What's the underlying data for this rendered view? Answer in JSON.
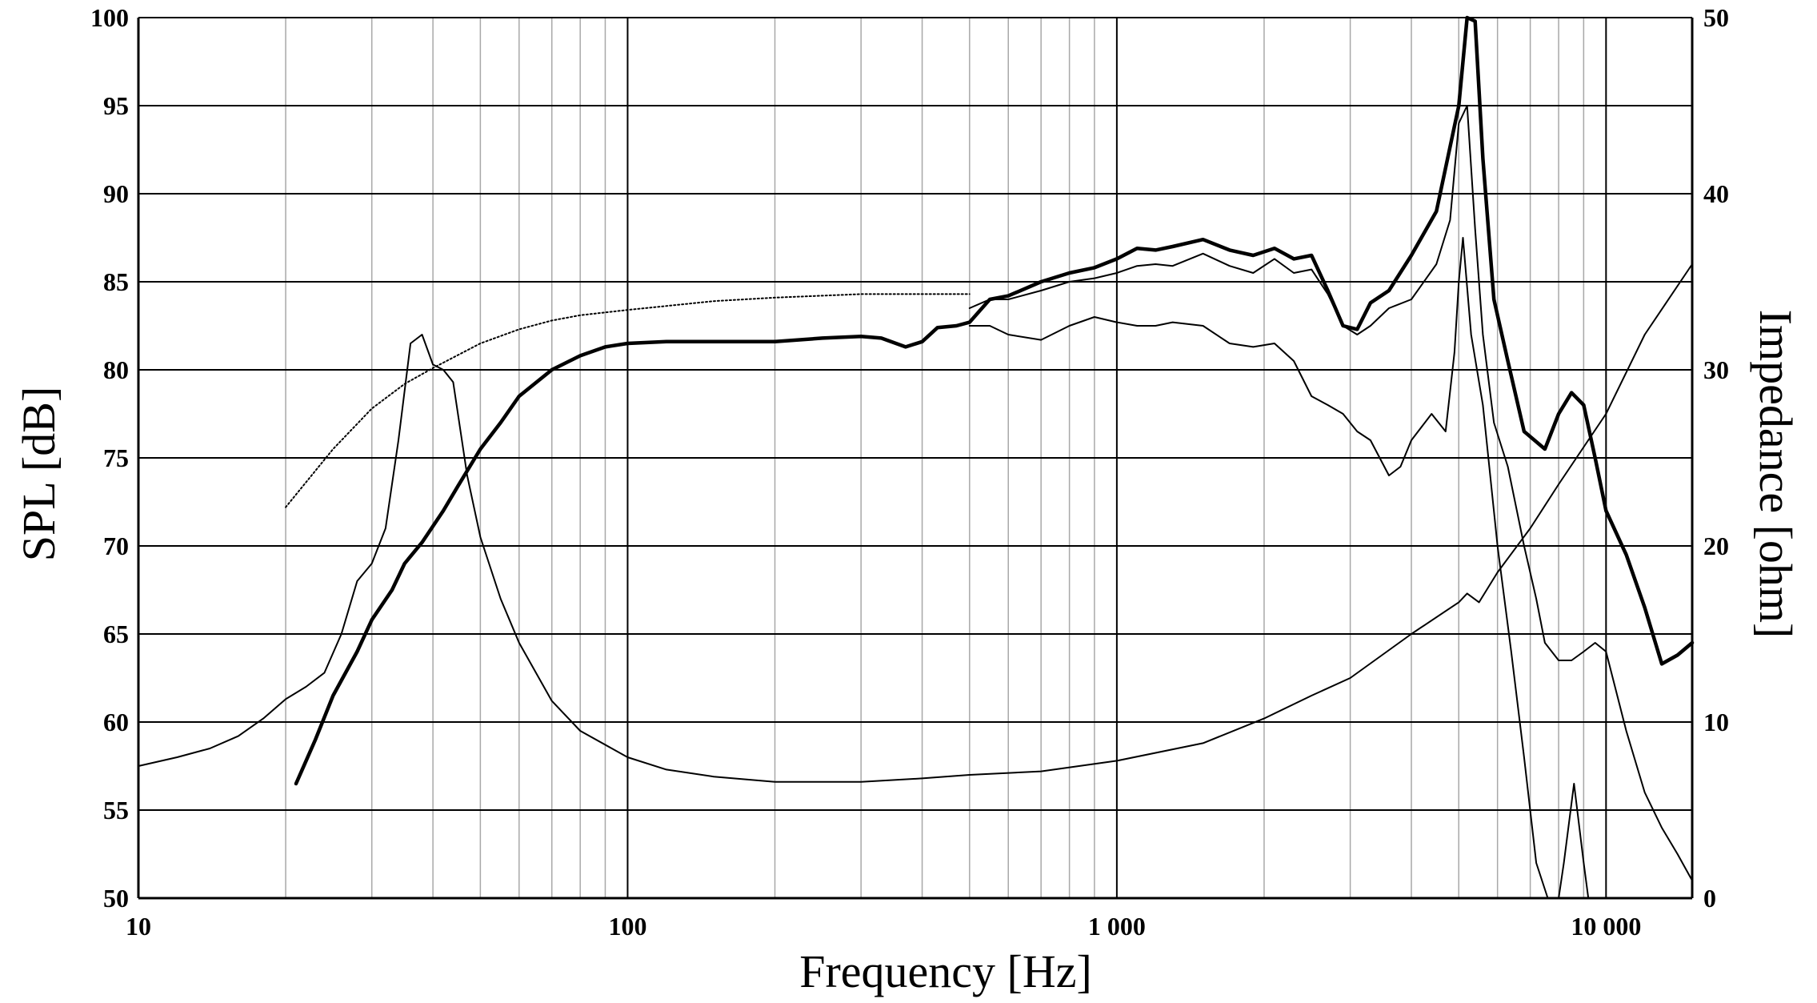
{
  "chart_data": {
    "type": "line",
    "xlabel": "Frequency [Hz]",
    "ylabel": "SPL [dB]",
    "y2label": "Impedance [ohm]",
    "x_scale": "log",
    "xlim": [
      10,
      15000
    ],
    "ylim": [
      50,
      100
    ],
    "y2lim": [
      0,
      50
    ],
    "grid": true,
    "x_ticks": [
      {
        "value": 10,
        "label": "10"
      },
      {
        "value": 100,
        "label": "100"
      },
      {
        "value": 1000,
        "label": "1 000"
      },
      {
        "value": 10000,
        "label": "10 000"
      }
    ],
    "y_ticks": [
      {
        "value": 100,
        "label": "100"
      },
      {
        "value": 95,
        "label": "95"
      },
      {
        "value": 90,
        "label": "90"
      },
      {
        "value": 85,
        "label": "85"
      },
      {
        "value": 80,
        "label": "80"
      },
      {
        "value": 75,
        "label": "75"
      },
      {
        "value": 70,
        "label": "70"
      },
      {
        "value": 65,
        "label": "65"
      },
      {
        "value": 60,
        "label": "60"
      },
      {
        "value": 55,
        "label": "55"
      },
      {
        "value": 50,
        "label": "50"
      }
    ],
    "y2_ticks": [
      {
        "value": 50,
        "label": "50"
      },
      {
        "value": 40,
        "label": "40"
      },
      {
        "value": 30,
        "label": "30"
      },
      {
        "value": 20,
        "label": "20"
      },
      {
        "value": 10,
        "label": "10"
      },
      {
        "value": 0,
        "label": "0"
      }
    ],
    "series": [
      {
        "axis": "left",
        "style": "dotted",
        "x": [
          20,
          25,
          30,
          35,
          40,
          50,
          60,
          70,
          80,
          100,
          150,
          200,
          300,
          500
        ],
        "y": [
          72.2,
          75.5,
          77.8,
          79.2,
          80.1,
          81.5,
          82.3,
          82.8,
          83.1,
          83.4,
          83.9,
          84.1,
          84.3,
          84.3
        ]
      },
      {
        "axis": "left",
        "style": "thick",
        "x": [
          21,
          23,
          25,
          28,
          30,
          33,
          35,
          38,
          42,
          45,
          50,
          55,
          60,
          70,
          80,
          90,
          100,
          120,
          150,
          200,
          250,
          300,
          330,
          370,
          400,
          430,
          470,
          500,
          550,
          600,
          700,
          800,
          900,
          1000,
          1100,
          1200,
          1300,
          1500,
          1700,
          1900,
          2100,
          2300,
          2500,
          2700,
          2900,
          3100,
          3300,
          3600,
          4000,
          4500,
          5000,
          5200,
          5400,
          5600,
          5900,
          6300,
          6800,
          7500,
          8000,
          8500,
          9000,
          9500,
          10000,
          11000,
          12000,
          13000,
          14000,
          15000
        ],
        "y": [
          56.5,
          59,
          61.5,
          64,
          65.8,
          67.5,
          69,
          70.2,
          72,
          73.4,
          75.5,
          77,
          78.5,
          80,
          80.8,
          81.3,
          81.5,
          81.6,
          81.6,
          81.6,
          81.8,
          81.9,
          81.8,
          81.3,
          81.6,
          82.4,
          82.5,
          82.7,
          84,
          84.2,
          85,
          85.5,
          85.8,
          86.3,
          86.9,
          86.8,
          87,
          87.4,
          86.8,
          86.5,
          86.9,
          86.3,
          86.5,
          84.5,
          82.5,
          82.3,
          83.8,
          84.5,
          86.5,
          89,
          95,
          100,
          99.8,
          92,
          84,
          80.5,
          76.5,
          75.5,
          77.5,
          78.7,
          78,
          75,
          72,
          69.5,
          66.5,
          63.3,
          63.8,
          64.5
        ]
      },
      {
        "axis": "left",
        "style": "thin",
        "x": [
          500,
          550,
          600,
          700,
          800,
          900,
          1000,
          1100,
          1200,
          1300,
          1500,
          1700,
          1900,
          2100,
          2300,
          2500,
          2700,
          2900,
          3100,
          3300,
          3600,
          4000,
          4500,
          4800,
          5000,
          5200,
          5400,
          5600,
          5900,
          6300,
          6800,
          7200,
          7500,
          8000,
          8500,
          9000,
          9500,
          10000,
          11000,
          12000,
          13000,
          14000,
          15000
        ],
        "y": [
          83.5,
          84,
          84,
          84.5,
          85,
          85.2,
          85.5,
          85.9,
          86,
          85.9,
          86.6,
          85.9,
          85.5,
          86.3,
          85.5,
          85.7,
          84.3,
          82.5,
          82,
          82.5,
          83.5,
          84,
          86,
          88.5,
          94,
          95,
          88,
          82,
          77,
          74.5,
          70,
          67,
          64.5,
          63.5,
          63.5,
          64,
          64.5,
          64,
          59.5,
          56,
          54,
          52.5,
          51
        ]
      },
      {
        "axis": "left",
        "style": "thin",
        "x": [
          500,
          550,
          600,
          700,
          800,
          900,
          1000,
          1100,
          1200,
          1300,
          1500,
          1700,
          1900,
          2100,
          2300,
          2500,
          2700,
          2900,
          3100,
          3300,
          3600,
          3800,
          4000,
          4400,
          4700,
          4900,
          5000,
          5100,
          5300,
          5600,
          6000,
          6400,
          6800,
          7200,
          7600,
          8000,
          8200,
          8600,
          9000,
          9200
        ],
        "y": [
          82.5,
          82.5,
          82,
          81.7,
          82.5,
          83,
          82.7,
          82.5,
          82.5,
          82.7,
          82.5,
          81.5,
          81.3,
          81.5,
          80.5,
          78.5,
          78,
          77.5,
          76.5,
          76,
          74,
          74.5,
          76,
          77.5,
          76.5,
          81,
          85,
          87.5,
          82,
          78,
          70,
          64,
          58,
          52,
          50,
          50,
          52,
          56.5,
          52,
          50
        ]
      },
      {
        "axis": "right",
        "style": "thin",
        "x": [
          10,
          12,
          14,
          16,
          18,
          20,
          22,
          24,
          26,
          28,
          30,
          32,
          34,
          36,
          38,
          40,
          42,
          44,
          47,
          50,
          55,
          60,
          70,
          80,
          100,
          120,
          150,
          200,
          300,
          400,
          500,
          700,
          1000,
          1500,
          2000,
          2500,
          3000,
          4000,
          5000,
          5200,
          5500,
          6000,
          7000,
          8000,
          10000,
          12000,
          15000
        ],
        "y": [
          7.5,
          8,
          8.5,
          9.2,
          10.2,
          11.3,
          12,
          12.8,
          15,
          18,
          19,
          21,
          26,
          31.5,
          32,
          30.3,
          30,
          29.3,
          24,
          20.5,
          17,
          14.5,
          11.2,
          9.5,
          8,
          7.3,
          6.9,
          6.6,
          6.6,
          6.8,
          7,
          7.2,
          7.8,
          8.8,
          10.2,
          11.5,
          12.5,
          15,
          16.8,
          17.3,
          16.8,
          18.5,
          21,
          23.5,
          27.5,
          32,
          36
        ]
      }
    ]
  }
}
